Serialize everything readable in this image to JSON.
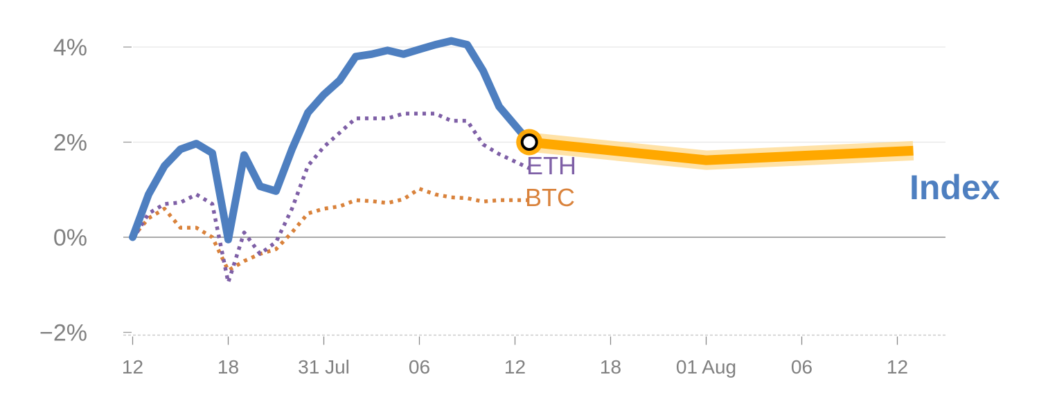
{
  "chart_data": {
    "type": "line",
    "title": "",
    "xlabel": "",
    "ylabel": "",
    "y_unit": "%",
    "ylim": [
      -2,
      4.6
    ],
    "yticks": [
      {
        "value": -2,
        "label": "−2%"
      },
      {
        "value": 0,
        "label": "0%"
      },
      {
        "value": 2,
        "label": "2%"
      },
      {
        "value": 4,
        "label": "4%"
      }
    ],
    "xticks": [
      {
        "x": 0,
        "label": "12"
      },
      {
        "x": 6,
        "label": "18"
      },
      {
        "x": 12,
        "label": "31 Jul"
      },
      {
        "x": 18,
        "label": "06"
      },
      {
        "x": 24,
        "label": "12"
      },
      {
        "x": 30,
        "label": "18"
      },
      {
        "x": 36,
        "label": "01 Aug"
      },
      {
        "x": 42,
        "label": "06"
      },
      {
        "x": 48,
        "label": "12"
      }
    ],
    "grid": true,
    "colors": {
      "index": "#4E7FC0",
      "eth": "#7E5FA6",
      "btc": "#D9823B",
      "forecast": "#FFA800",
      "forecast_halo": "#FFD88A",
      "axis": "#808080",
      "grid": "#E6E6E6"
    },
    "series": [
      {
        "name": "Index",
        "style": "solid",
        "x": [
          0,
          1,
          2,
          3,
          4,
          5,
          6,
          7,
          8,
          9,
          10,
          11,
          12,
          13,
          14,
          15,
          16,
          17,
          18,
          19,
          20,
          21,
          22,
          23,
          24.9
        ],
        "values": [
          0,
          0.9,
          1.5,
          1.85,
          1.97,
          1.77,
          -0.05,
          1.73,
          1.07,
          0.97,
          1.85,
          2.62,
          3.0,
          3.3,
          3.8,
          3.85,
          3.93,
          3.85,
          3.95,
          4.05,
          4.13,
          4.05,
          3.5,
          2.75,
          2.0
        ]
      },
      {
        "name": "ETH",
        "style": "dotted",
        "x": [
          0,
          1,
          2,
          3,
          4,
          5,
          6,
          7,
          8,
          9,
          10,
          11,
          12,
          13,
          14,
          15,
          16,
          17,
          18,
          19,
          20,
          21,
          22,
          23,
          24.9
        ],
        "values": [
          -0.05,
          0.5,
          0.7,
          0.73,
          0.9,
          0.7,
          -0.95,
          0.1,
          -0.35,
          -0.1,
          0.6,
          1.5,
          1.9,
          2.2,
          2.5,
          2.5,
          2.5,
          2.6,
          2.6,
          2.6,
          2.45,
          2.45,
          1.95,
          1.75,
          1.45
        ]
      },
      {
        "name": "BTC",
        "style": "dotted",
        "x": [
          0,
          1,
          2,
          3,
          4,
          5,
          6,
          7,
          8,
          9,
          10,
          11,
          12,
          13,
          14,
          15,
          16,
          17,
          18,
          19,
          20,
          21,
          22,
          23,
          24.9
        ],
        "values": [
          0,
          0.4,
          0.6,
          0.2,
          0.2,
          0.0,
          -0.7,
          -0.5,
          -0.35,
          -0.25,
          0.1,
          0.5,
          0.6,
          0.65,
          0.78,
          0.76,
          0.72,
          0.8,
          1.02,
          0.9,
          0.84,
          0.82,
          0.75,
          0.78,
          0.78
        ]
      },
      {
        "name": "Index",
        "style": "forecast",
        "x": [
          24.9,
          36,
          49
        ],
        "values": [
          2.0,
          1.62,
          1.82
        ]
      }
    ],
    "annotations": [
      {
        "text": "ETH",
        "series": "eth"
      },
      {
        "text": "BTC",
        "series": "btc"
      },
      {
        "text": "Index",
        "series": "index"
      }
    ]
  }
}
